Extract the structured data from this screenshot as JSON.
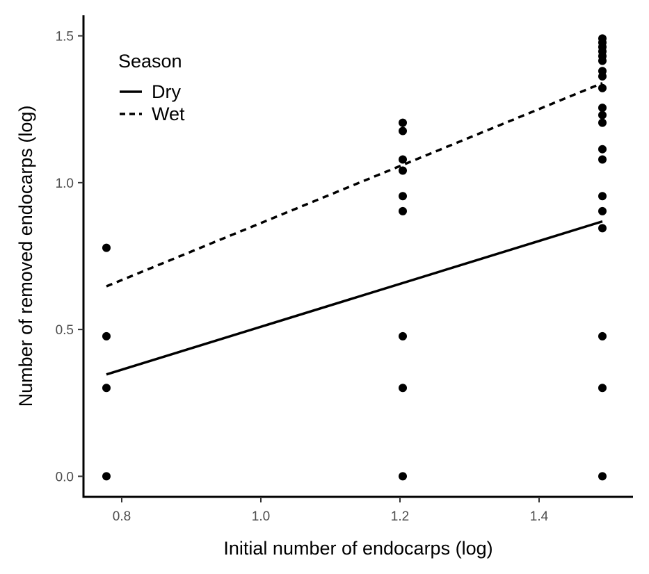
{
  "chart_data": {
    "type": "scatter",
    "xlabel": "Initial number of endocarps (log)",
    "ylabel": "Number of removed endocarps (log)",
    "xlim": [
      0.745,
      1.535
    ],
    "ylim": [
      -0.07,
      1.57
    ],
    "x_ticks": [
      0.8,
      1.0,
      1.2,
      1.4
    ],
    "x_tick_labels": [
      "0.8",
      "1.0",
      "1.2",
      "1.4"
    ],
    "y_ticks": [
      0.0,
      0.5,
      1.0,
      1.5
    ],
    "y_tick_labels": [
      "0.0",
      "0.5",
      "1.0",
      "1.5"
    ],
    "grid": false,
    "legend": {
      "title": "Season",
      "placement": "top-left",
      "entries": [
        {
          "label": "Dry",
          "linetype": "solid"
        },
        {
          "label": "Wet",
          "linetype": "dashed"
        }
      ]
    },
    "points": [
      {
        "x": 0.778,
        "y": 0.0
      },
      {
        "x": 0.778,
        "y": 0.301
      },
      {
        "x": 0.778,
        "y": 0.477
      },
      {
        "x": 0.778,
        "y": 0.778
      },
      {
        "x": 1.204,
        "y": 0.0
      },
      {
        "x": 1.204,
        "y": 0.301
      },
      {
        "x": 1.204,
        "y": 0.477
      },
      {
        "x": 1.204,
        "y": 0.903
      },
      {
        "x": 1.204,
        "y": 0.954
      },
      {
        "x": 1.204,
        "y": 1.041
      },
      {
        "x": 1.204,
        "y": 1.079
      },
      {
        "x": 1.204,
        "y": 1.176
      },
      {
        "x": 1.204,
        "y": 1.204
      },
      {
        "x": 1.491,
        "y": 0.0
      },
      {
        "x": 1.491,
        "y": 0.301
      },
      {
        "x": 1.491,
        "y": 0.477
      },
      {
        "x": 1.491,
        "y": 0.845
      },
      {
        "x": 1.491,
        "y": 0.903
      },
      {
        "x": 1.491,
        "y": 0.954
      },
      {
        "x": 1.491,
        "y": 1.079
      },
      {
        "x": 1.491,
        "y": 1.114
      },
      {
        "x": 1.491,
        "y": 1.204
      },
      {
        "x": 1.491,
        "y": 1.23
      },
      {
        "x": 1.491,
        "y": 1.255
      },
      {
        "x": 1.491,
        "y": 1.322
      },
      {
        "x": 1.491,
        "y": 1.362
      },
      {
        "x": 1.491,
        "y": 1.38
      },
      {
        "x": 1.491,
        "y": 1.415
      },
      {
        "x": 1.491,
        "y": 1.431
      },
      {
        "x": 1.491,
        "y": 1.447
      },
      {
        "x": 1.491,
        "y": 1.462
      },
      {
        "x": 1.491,
        "y": 1.477
      },
      {
        "x": 1.491,
        "y": 1.491
      }
    ],
    "lines": [
      {
        "name": "Dry",
        "linetype": "solid",
        "x": [
          0.778,
          1.491
        ],
        "y": [
          0.347,
          0.868
        ]
      },
      {
        "name": "Wet",
        "linetype": "dashed",
        "x": [
          0.778,
          1.491
        ],
        "y": [
          0.647,
          1.339
        ]
      }
    ]
  }
}
